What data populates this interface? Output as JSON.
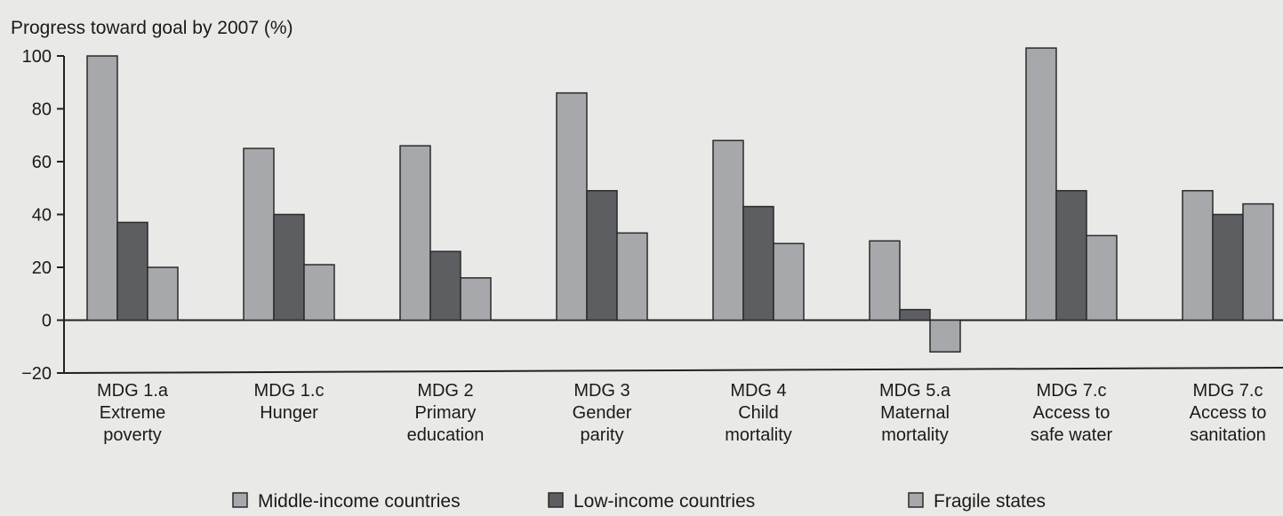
{
  "chart_data": {
    "type": "bar",
    "title": "Progress toward goal by 2007 (%)",
    "xlabel": "",
    "ylabel": "",
    "ylim": [
      -20,
      100
    ],
    "yticks": [
      100,
      80,
      60,
      40,
      20,
      0,
      -20
    ],
    "yticks_text": [
      "100",
      "80",
      "60",
      "40",
      "20",
      "0",
      "−20"
    ],
    "categories": [
      [
        "MDG 1.a",
        "Extreme",
        "poverty"
      ],
      [
        "MDG 1.c",
        "Hunger"
      ],
      [
        "MDG 2",
        "Primary",
        "education"
      ],
      [
        "MDG 3",
        "Gender",
        "parity"
      ],
      [
        "MDG 4",
        "Child",
        "mortality"
      ],
      [
        "MDG 5.a",
        "Maternal",
        "mortality"
      ],
      [
        "MDG 7.c",
        "Access to",
        "safe water"
      ],
      [
        "MDG 7.c",
        "Access to",
        "sanitation"
      ]
    ],
    "series": [
      {
        "name": "Middle-income countries",
        "color": "#a6a8ab",
        "values": [
          100,
          65,
          66,
          86,
          68,
          30,
          103,
          49
        ]
      },
      {
        "name": "Low-income countries",
        "color": "#5c5e61",
        "values": [
          37,
          40,
          26,
          49,
          43,
          4,
          49,
          40
        ]
      },
      {
        "name": "Fragile states",
        "color": "#a6a8ab",
        "values": [
          20,
          21,
          16,
          33,
          29,
          -12,
          32,
          44
        ]
      }
    ],
    "grid": false,
    "legend_position": "bottom"
  }
}
